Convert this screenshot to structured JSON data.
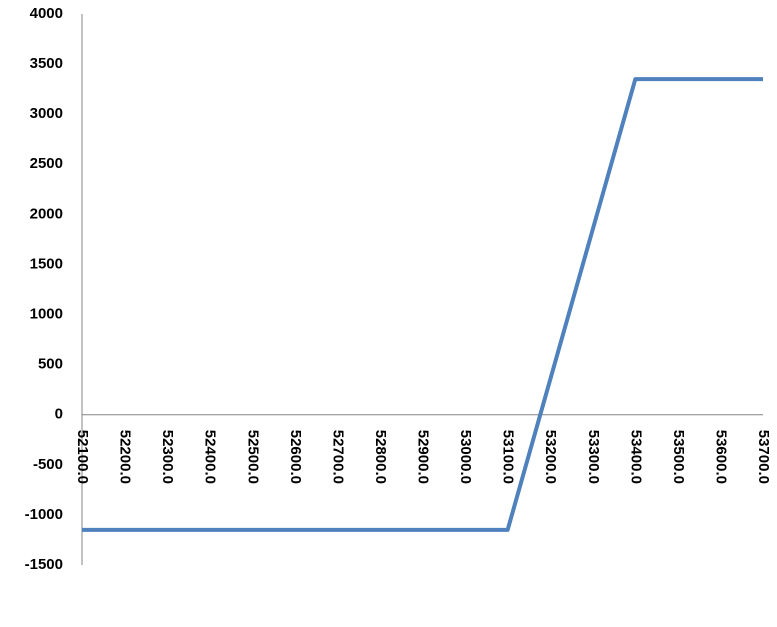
{
  "chart_data": {
    "type": "line",
    "categories": [
      "52100.0",
      "52200.0",
      "52300.0",
      "52400.0",
      "52500.0",
      "52600.0",
      "52700.0",
      "52800.0",
      "52900.0",
      "53000.0",
      "53100.0",
      "53200.0",
      "53300.0",
      "53400.0",
      "53500.0",
      "53600.0",
      "53700.0"
    ],
    "values": [
      -1150,
      -1150,
      -1150,
      -1150,
      -1150,
      -1150,
      -1150,
      -1150,
      -1150,
      -1150,
      -1150,
      350,
      1850,
      3350,
      3350,
      3350,
      3350
    ],
    "color": "#4f81bd",
    "ylim": [
      -1500,
      4000
    ],
    "yticks": [
      -1500,
      -1000,
      -500,
      0,
      500,
      1000,
      1500,
      2000,
      2500,
      3000,
      3500,
      4000
    ],
    "grid": false
  }
}
